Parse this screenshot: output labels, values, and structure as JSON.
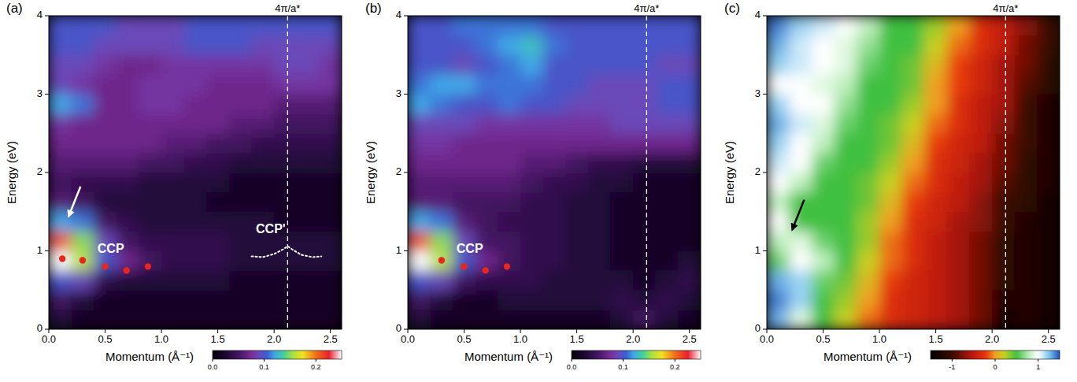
{
  "chart_data": [
    {
      "type": "heatmap",
      "panel_label": "(a)",
      "x_label": "Momentum (Å⁻¹)",
      "y_label": "Energy (eV)",
      "xlim": [
        0,
        2.6
      ],
      "ylim": [
        0,
        4
      ],
      "xticks": [
        {
          "value": 0,
          "label": "0.0"
        },
        {
          "value": 0.5,
          "label": "0.5"
        },
        {
          "value": 1,
          "label": "1.0"
        },
        {
          "value": 1.5,
          "label": "1.5"
        },
        {
          "value": 2,
          "label": "2.0"
        },
        {
          "value": 2.5,
          "label": "2.5"
        }
      ],
      "yticks": [
        0,
        1,
        2,
        3,
        4
      ],
      "cells": {
        "x": [
          0.1,
          0.3,
          0.5,
          0.7,
          0.9,
          1.1,
          1.3,
          1.5,
          1.7,
          1.9,
          2.1,
          2.3,
          2.5
        ],
        "y": [
          0.125,
          0.375,
          0.625,
          0.875,
          1.125,
          1.375,
          1.625,
          1.875,
          2.125,
          2.375,
          2.625,
          2.875,
          3.125,
          3.375,
          3.625,
          3.875
        ],
        "values": [
          [
            0.03,
            0.02,
            0.02,
            0.02,
            0.02,
            0.02,
            0.02,
            0.02,
            0.02,
            0.02,
            0.02,
            0.02,
            0.02
          ],
          [
            0.05,
            0.03,
            0.02,
            0.02,
            0.02,
            0.02,
            0.02,
            0.02,
            0.02,
            0.02,
            0.02,
            0.02,
            0.02
          ],
          [
            0.1,
            0.09,
            0.04,
            0.03,
            0.03,
            0.03,
            0.03,
            0.03,
            0.02,
            0.02,
            0.02,
            0.02,
            0.02
          ],
          [
            0.25,
            0.16,
            0.1,
            0.07,
            0.05,
            0.04,
            0.04,
            0.04,
            0.03,
            0.03,
            0.03,
            0.03,
            0.03
          ],
          [
            0.21,
            0.15,
            0.09,
            0.05,
            0.04,
            0.04,
            0.04,
            0.04,
            0.03,
            0.03,
            0.03,
            0.03,
            0.03
          ],
          [
            0.12,
            0.11,
            0.05,
            0.04,
            0.03,
            0.03,
            0.03,
            0.03,
            0.03,
            0.03,
            0.02,
            0.02,
            0.02
          ],
          [
            0.06,
            0.05,
            0.03,
            0.03,
            0.03,
            0.03,
            0.03,
            0.02,
            0.02,
            0.02,
            0.02,
            0.02,
            0.02
          ],
          [
            0.05,
            0.04,
            0.04,
            0.04,
            0.03,
            0.03,
            0.03,
            0.03,
            0.02,
            0.02,
            0.02,
            0.02,
            0.02
          ],
          [
            0.06,
            0.06,
            0.06,
            0.06,
            0.05,
            0.05,
            0.04,
            0.04,
            0.03,
            0.03,
            0.03,
            0.03,
            0.03
          ],
          [
            0.07,
            0.07,
            0.07,
            0.07,
            0.07,
            0.06,
            0.06,
            0.05,
            0.05,
            0.04,
            0.04,
            0.04,
            0.04
          ],
          [
            0.08,
            0.07,
            0.07,
            0.07,
            0.07,
            0.07,
            0.07,
            0.07,
            0.06,
            0.06,
            0.05,
            0.05,
            0.05
          ],
          [
            0.12,
            0.11,
            0.07,
            0.07,
            0.08,
            0.08,
            0.07,
            0.07,
            0.07,
            0.07,
            0.06,
            0.06,
            0.06
          ],
          [
            0.09,
            0.08,
            0.07,
            0.07,
            0.08,
            0.08,
            0.08,
            0.07,
            0.07,
            0.07,
            0.08,
            0.08,
            0.08
          ],
          [
            0.09,
            0.09,
            0.08,
            0.07,
            0.07,
            0.08,
            0.08,
            0.08,
            0.08,
            0.08,
            0.09,
            0.09,
            0.08
          ],
          [
            0.1,
            0.1,
            0.09,
            0.09,
            0.09,
            0.09,
            0.1,
            0.1,
            0.1,
            0.09,
            0.09,
            0.09,
            0.09
          ],
          [
            0.1,
            0.1,
            0.1,
            0.09,
            0.09,
            0.09,
            0.1,
            0.1,
            0.1,
            0.1,
            0.1,
            0.1,
            0.1
          ]
        ]
      },
      "colorbar": {
        "range": [
          0,
          0.25
        ],
        "ticks": [
          {
            "value": 0,
            "label": "0.0"
          },
          {
            "value": 0.1,
            "label": "0.1"
          },
          {
            "value": 0.2,
            "label": "0.2"
          }
        ]
      },
      "series": [
        {
          "type": "scatter",
          "marker": "circle",
          "color": "#e8261e",
          "x": [
            0.12,
            0.3,
            0.5,
            0.69,
            0.88
          ],
          "values": [
            0.9,
            0.88,
            0.8,
            0.75,
            0.8
          ]
        },
        {
          "type": "line",
          "line_style": "dotted",
          "color": "#ffffff",
          "x": [
            1.8,
            1.9,
            2.0,
            2.08,
            2.12,
            2.16,
            2.24,
            2.34,
            2.42
          ],
          "values": [
            0.93,
            0.92,
            0.96,
            1.02,
            1.06,
            1.02,
            0.95,
            0.92,
            0.93
          ]
        }
      ],
      "reference_line": {
        "x": 2.12,
        "label": "4π/a*"
      },
      "annotations": [
        {
          "text": "CCP",
          "x": 0.55,
          "y": 1.02
        },
        {
          "text": "CCP'",
          "x": 1.97,
          "y": 1.27
        }
      ],
      "arrows": [
        {
          "x": 0.17,
          "y": 1.42,
          "color": "#ffffff"
        }
      ]
    },
    {
      "type": "heatmap",
      "panel_label": "(b)",
      "x_label": "Momentum (Å⁻¹)",
      "y_label": "Energy (eV)",
      "xlim": [
        0,
        2.6
      ],
      "ylim": [
        0,
        4
      ],
      "xticks": [
        {
          "value": 0,
          "label": "0.0"
        },
        {
          "value": 0.5,
          "label": "0.5"
        },
        {
          "value": 1,
          "label": "1.0"
        },
        {
          "value": 1.5,
          "label": "1.5"
        },
        {
          "value": 2,
          "label": "2.0"
        },
        {
          "value": 2.5,
          "label": "2.5"
        }
      ],
      "yticks": [
        0,
        1,
        2,
        3,
        4
      ],
      "cells": {
        "x": [
          0.1,
          0.3,
          0.5,
          0.7,
          0.9,
          1.1,
          1.3,
          1.5,
          1.7,
          1.9,
          2.1,
          2.3,
          2.5
        ],
        "y": [
          0.125,
          0.375,
          0.625,
          0.875,
          1.125,
          1.375,
          1.625,
          1.875,
          2.125,
          2.375,
          2.625,
          2.875,
          3.125,
          3.375,
          3.625,
          3.875
        ],
        "values": [
          [
            0.03,
            0.02,
            0.02,
            0.02,
            0.02,
            0.02,
            0.02,
            0.02,
            0.02,
            0.03,
            0.05,
            0.03,
            0.02
          ],
          [
            0.05,
            0.03,
            0.02,
            0.02,
            0.03,
            0.03,
            0.03,
            0.03,
            0.03,
            0.04,
            0.03,
            0.04,
            0.03
          ],
          [
            0.1,
            0.09,
            0.05,
            0.04,
            0.04,
            0.04,
            0.03,
            0.03,
            0.03,
            0.03,
            0.02,
            0.03,
            0.04
          ],
          [
            0.25,
            0.16,
            0.1,
            0.07,
            0.05,
            0.04,
            0.04,
            0.03,
            0.03,
            0.02,
            0.02,
            0.02,
            0.03
          ],
          [
            0.21,
            0.15,
            0.09,
            0.05,
            0.05,
            0.04,
            0.04,
            0.03,
            0.03,
            0.02,
            0.02,
            0.02,
            0.02
          ],
          [
            0.12,
            0.11,
            0.06,
            0.05,
            0.04,
            0.04,
            0.04,
            0.03,
            0.03,
            0.02,
            0.02,
            0.02,
            0.02
          ],
          [
            0.06,
            0.06,
            0.05,
            0.05,
            0.05,
            0.04,
            0.04,
            0.03,
            0.03,
            0.02,
            0.02,
            0.02,
            0.02
          ],
          [
            0.06,
            0.06,
            0.06,
            0.06,
            0.06,
            0.05,
            0.04,
            0.04,
            0.03,
            0.03,
            0.02,
            0.02,
            0.02
          ],
          [
            0.07,
            0.07,
            0.07,
            0.07,
            0.07,
            0.06,
            0.06,
            0.05,
            0.04,
            0.04,
            0.03,
            0.03,
            0.03
          ],
          [
            0.08,
            0.08,
            0.07,
            0.07,
            0.07,
            0.07,
            0.07,
            0.07,
            0.07,
            0.07,
            0.07,
            0.07,
            0.07
          ],
          [
            0.09,
            0.09,
            0.09,
            0.08,
            0.08,
            0.08,
            0.08,
            0.08,
            0.08,
            0.09,
            0.09,
            0.09,
            0.09
          ],
          [
            0.12,
            0.11,
            0.1,
            0.1,
            0.11,
            0.1,
            0.1,
            0.09,
            0.09,
            0.09,
            0.09,
            0.1,
            0.1
          ],
          [
            0.11,
            0.12,
            0.12,
            0.11,
            0.11,
            0.11,
            0.1,
            0.1,
            0.09,
            0.09,
            0.09,
            0.1,
            0.1
          ],
          [
            0.1,
            0.1,
            0.09,
            0.1,
            0.11,
            0.12,
            0.1,
            0.1,
            0.1,
            0.1,
            0.1,
            0.09,
            0.09
          ],
          [
            0.1,
            0.1,
            0.1,
            0.11,
            0.12,
            0.13,
            0.11,
            0.1,
            0.1,
            0.1,
            0.1,
            0.1,
            0.1
          ],
          [
            0.1,
            0.1,
            0.11,
            0.11,
            0.11,
            0.11,
            0.1,
            0.1,
            0.1,
            0.1,
            0.1,
            0.1,
            0.1
          ]
        ]
      },
      "colorbar": {
        "range": [
          0,
          0.25
        ],
        "ticks": [
          {
            "value": 0,
            "label": "0.0"
          },
          {
            "value": 0.1,
            "label": "0.1"
          },
          {
            "value": 0.2,
            "label": "0.2"
          }
        ]
      },
      "series": [
        {
          "type": "scatter",
          "marker": "circle",
          "color": "#e8261e",
          "x": [
            0.3,
            0.5,
            0.69,
            0.88
          ],
          "values": [
            0.88,
            0.8,
            0.75,
            0.8
          ]
        }
      ],
      "reference_line": {
        "x": 2.12,
        "label": "4π/a*"
      },
      "annotations": [
        {
          "text": "CCP",
          "x": 0.55,
          "y": 1.02
        }
      ]
    },
    {
      "type": "heatmap",
      "panel_label": "(c)",
      "x_label": "Momentum (Å⁻¹)",
      "y_label": "Energy (eV)",
      "xlim": [
        0,
        2.6
      ],
      "ylim": [
        0,
        4
      ],
      "xticks": [
        {
          "value": 0,
          "label": "0.0"
        },
        {
          "value": 0.5,
          "label": "0.5"
        },
        {
          "value": 1,
          "label": "1.0"
        },
        {
          "value": 1.5,
          "label": "1.5"
        },
        {
          "value": 2,
          "label": "2.0"
        },
        {
          "value": 2.5,
          "label": "2.5"
        }
      ],
      "yticks": [
        0,
        1,
        2,
        3,
        4
      ],
      "cells": {
        "x": [
          0.1,
          0.3,
          0.5,
          0.7,
          0.9,
          1.1,
          1.3,
          1.5,
          1.7,
          1.9,
          2.1,
          2.3,
          2.5
        ],
        "y": [
          0.125,
          0.375,
          0.625,
          0.875,
          1.125,
          1.375,
          1.625,
          1.875,
          2.125,
          2.375,
          2.625,
          2.875,
          3.125,
          3.375,
          3.625,
          3.875
        ],
        "values": [
          [
            1.3,
            0.9,
            0.5,
            0.2,
            -0.1,
            -0.3,
            -0.4,
            -0.5,
            -0.6,
            -0.8,
            -1.3,
            -1.2,
            -1.3
          ],
          [
            1.4,
            1.2,
            0.5,
            0.3,
            0.0,
            -0.3,
            -0.4,
            -0.5,
            -0.6,
            -0.8,
            -1.2,
            -1.2,
            -1.3
          ],
          [
            1.3,
            1.2,
            0.6,
            0.4,
            0.1,
            -0.2,
            -0.4,
            -0.5,
            -0.6,
            -0.8,
            -1.1,
            -1.2,
            -1.3
          ],
          [
            0.6,
            1.0,
            0.8,
            0.5,
            0.2,
            -0.1,
            -0.3,
            -0.5,
            -0.6,
            -0.8,
            -1.1,
            -1.2,
            -1.3
          ],
          [
            0.8,
            0.9,
            0.6,
            0.5,
            0.3,
            -0.1,
            -0.3,
            -0.5,
            -0.6,
            -0.8,
            -1.1,
            -1.2,
            -1.3
          ],
          [
            1.0,
            0.5,
            0.5,
            0.5,
            0.3,
            0.0,
            -0.3,
            -0.4,
            -0.6,
            -0.7,
            -1.0,
            -1.2,
            -1.3
          ],
          [
            0.8,
            0.5,
            0.5,
            0.5,
            0.4,
            0.1,
            -0.2,
            -0.4,
            -0.5,
            -0.7,
            -1.0,
            -1.1,
            -1.3
          ],
          [
            1.0,
            0.8,
            0.5,
            0.5,
            0.4,
            0.2,
            -0.1,
            -0.3,
            -0.5,
            -0.6,
            -0.9,
            -1.1,
            -1.2
          ],
          [
            1.1,
            1.0,
            0.6,
            0.5,
            0.5,
            0.3,
            0.0,
            -0.3,
            -0.4,
            -0.6,
            -0.8,
            -1.1,
            -1.2
          ],
          [
            1.2,
            1.0,
            0.8,
            0.5,
            0.5,
            0.4,
            0.1,
            -0.2,
            -0.4,
            -0.5,
            -0.8,
            -1.0,
            -1.2
          ],
          [
            1.3,
            1.1,
            0.9,
            0.6,
            0.5,
            0.4,
            0.2,
            -0.1,
            -0.3,
            -0.5,
            -0.7,
            -1.0,
            -1.2
          ],
          [
            1.2,
            1.0,
            1.0,
            0.7,
            0.5,
            0.5,
            0.3,
            0.0,
            -0.3,
            -0.5,
            -0.6,
            -1.0,
            -1.2
          ],
          [
            1.0,
            1.0,
            0.9,
            0.8,
            0.5,
            0.5,
            0.4,
            0.0,
            -0.2,
            -0.4,
            -0.6,
            -0.9,
            -1.1
          ],
          [
            1.2,
            1.1,
            1.0,
            0.9,
            0.6,
            0.5,
            0.4,
            0.1,
            -0.2,
            -0.4,
            -0.6,
            -0.8,
            -1.1
          ],
          [
            1.3,
            1.1,
            1.0,
            0.9,
            0.7,
            0.5,
            0.5,
            0.2,
            -0.1,
            -0.3,
            -0.5,
            -0.8,
            -1.0
          ],
          [
            1.4,
            1.2,
            1.1,
            1.0,
            0.8,
            0.5,
            0.5,
            0.3,
            0.0,
            -0.3,
            -0.5,
            -0.7,
            -1.0
          ]
        ]
      },
      "colorbar": {
        "range": [
          -1.5,
          1.5
        ],
        "ticks": [
          -1,
          0,
          1
        ]
      },
      "reference_line": {
        "x": 2.12,
        "label": "4π/a*"
      },
      "arrows": [
        {
          "x": 0.22,
          "y": 1.25,
          "color": "#000000"
        }
      ]
    }
  ]
}
